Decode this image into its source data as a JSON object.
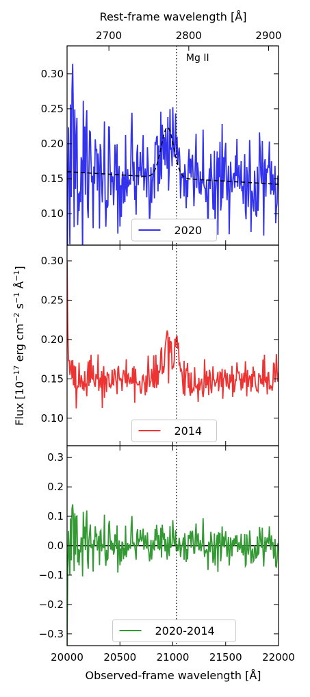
{
  "chart_data": {
    "type": "line",
    "xlabel": "Observed-frame wavelength [Å]",
    "x2label": "Rest-frame wavelength [Å]",
    "ylabel": "Flux [10",
    "ylabel_sup1": "−17",
    "ylabel_mid": " erg cm",
    "ylabel_sup2": "−2",
    "ylabel_mid2": " s",
    "ylabel_sup3": "−1",
    "ylabel_mid3": " Å",
    "ylabel_sup4": "−1",
    "ylabel_end": "]",
    "xlim": [
      20000,
      22000
    ],
    "x_ticks": [
      20000,
      20500,
      21000,
      21500,
      22000
    ],
    "x_tick_labels": [
      "20000",
      "20500",
      "21000",
      "21500",
      "22000"
    ],
    "x2lim": [
      2647.6,
      2912.4
    ],
    "x2_ticks": [
      2700,
      2800,
      2900
    ],
    "x2_tick_labels": [
      "2700",
      "2800",
      "2900"
    ],
    "line_annotation": {
      "x": 21035,
      "label": "Mg II"
    },
    "panels": [
      {
        "series_name": "2020",
        "color": "#3333ee",
        "ylim": [
          0.055,
          0.34
        ],
        "y_ticks": [
          0.1,
          0.15,
          0.2,
          0.25,
          0.3
        ],
        "y_tick_labels": [
          "0.10",
          "0.15",
          "0.20",
          "0.25",
          "0.30"
        ],
        "legend": "lower center",
        "seed": 2020,
        "model_fit": {
          "continuum_start": 0.16,
          "continuum_end": 0.142,
          "peak_x": 20950,
          "peak_amp": 0.072,
          "sigma": 60
        }
      },
      {
        "series_name": "2014",
        "color": "#ee3333",
        "ylim": [
          0.065,
          0.32
        ],
        "y_ticks": [
          0.1,
          0.15,
          0.2,
          0.25,
          0.3
        ],
        "y_tick_labels": [
          "0.10",
          "0.15",
          "0.20",
          "0.25",
          "0.30"
        ],
        "legend": "lower center",
        "seed": 2014
      },
      {
        "series_name": "2020-2014",
        "color": "#339933",
        "ylim": [
          -0.34,
          0.34
        ],
        "y_ticks": [
          -0.3,
          -0.2,
          -0.1,
          0.0,
          0.1,
          0.2,
          0.3
        ],
        "y_tick_labels": [
          "−0.3",
          "−0.2",
          "−0.1",
          "0.0",
          "0.1",
          "0.2",
          "0.3"
        ],
        "zero_line": true,
        "legend": "lower center",
        "seed": 6
      }
    ]
  }
}
